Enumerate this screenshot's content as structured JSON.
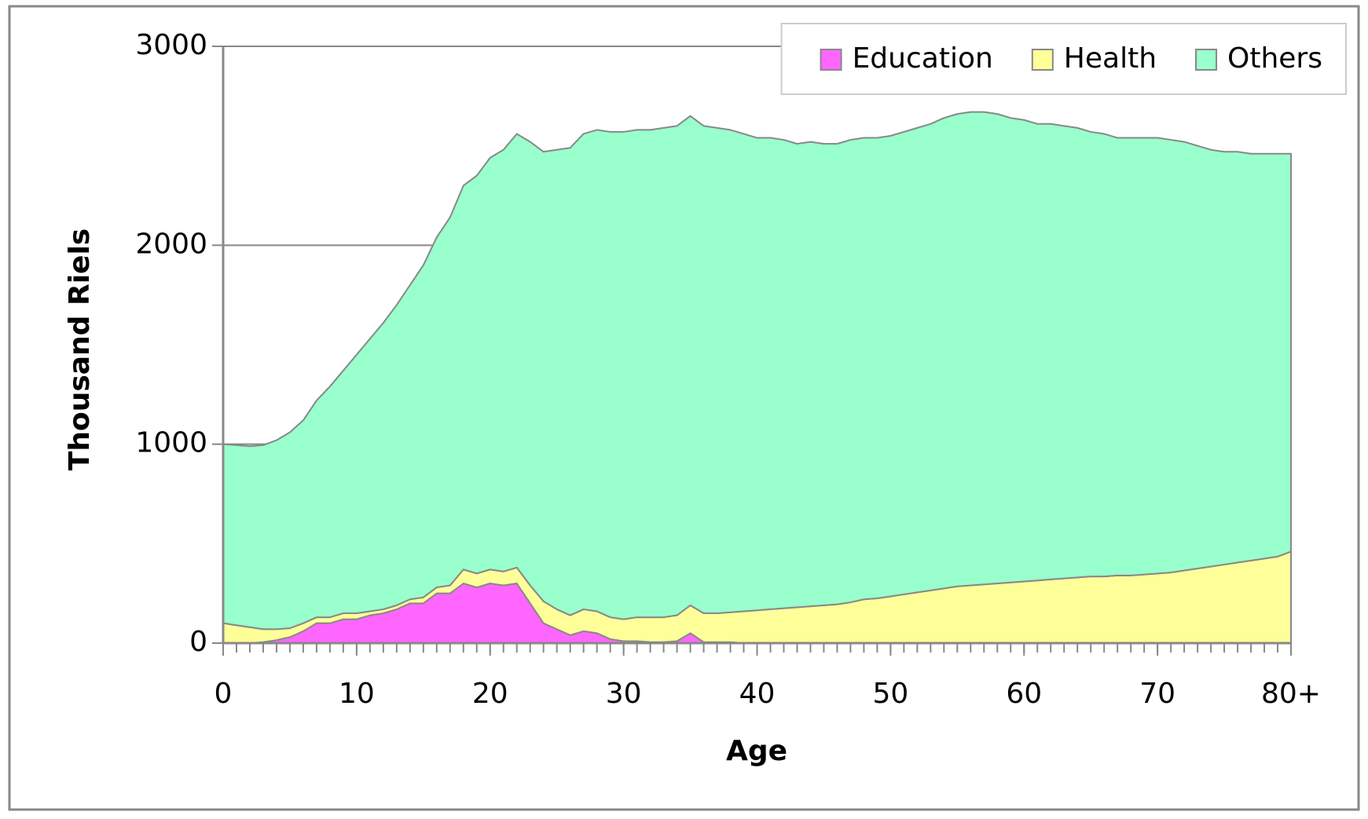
{
  "chart_data": {
    "type": "stacked-area",
    "x_label": "Age",
    "y_label": "Thousand Riels",
    "x": [
      0,
      1,
      2,
      3,
      4,
      5,
      6,
      7,
      8,
      9,
      10,
      11,
      12,
      13,
      14,
      15,
      16,
      17,
      18,
      19,
      20,
      21,
      22,
      23,
      24,
      25,
      26,
      27,
      28,
      29,
      30,
      31,
      32,
      33,
      34,
      35,
      36,
      37,
      38,
      39,
      40,
      41,
      42,
      43,
      44,
      45,
      46,
      47,
      48,
      49,
      50,
      51,
      52,
      53,
      54,
      55,
      56,
      57,
      58,
      59,
      60,
      61,
      62,
      63,
      64,
      65,
      66,
      67,
      68,
      69,
      70,
      71,
      72,
      73,
      74,
      75,
      76,
      77,
      78,
      79,
      80
    ],
    "xlim": [
      0,
      80
    ],
    "xticks": [
      0,
      10,
      20,
      30,
      40,
      50,
      60,
      70,
      {
        "value": 80,
        "label": "80+"
      }
    ],
    "ylim": [
      0,
      3000
    ],
    "yticks": [
      0,
      1000,
      2000,
      3000
    ],
    "grid": true,
    "legend": "top-right",
    "series": [
      {
        "name": "Education",
        "color": "#ff66ff",
        "values": [
          0,
          0,
          0,
          5,
          15,
          30,
          60,
          100,
          100,
          120,
          120,
          140,
          150,
          170,
          200,
          200,
          250,
          250,
          300,
          280,
          300,
          290,
          300,
          200,
          100,
          70,
          40,
          60,
          50,
          20,
          10,
          10,
          5,
          5,
          10,
          50,
          5,
          5,
          5,
          0,
          0,
          0,
          0,
          0,
          0,
          0,
          0,
          0,
          0,
          0,
          0,
          0,
          0,
          0,
          0,
          0,
          0,
          0,
          0,
          0,
          0,
          0,
          0,
          0,
          0,
          0,
          0,
          0,
          0,
          0,
          0,
          0,
          0,
          0,
          0,
          0,
          0,
          0,
          0,
          0,
          0
        ]
      },
      {
        "name": "Health",
        "color": "#ffff99",
        "values": [
          100,
          90,
          80,
          65,
          55,
          45,
          40,
          30,
          30,
          30,
          30,
          20,
          20,
          20,
          20,
          30,
          30,
          40,
          70,
          70,
          70,
          70,
          80,
          90,
          110,
          100,
          100,
          110,
          110,
          110,
          110,
          120,
          125,
          125,
          130,
          140,
          145,
          145,
          150,
          160,
          165,
          170,
          175,
          180,
          185,
          190,
          195,
          205,
          220,
          225,
          235,
          245,
          255,
          265,
          275,
          285,
          290,
          295,
          300,
          305,
          310,
          315,
          320,
          325,
          330,
          335,
          335,
          340,
          340,
          345,
          350,
          355,
          365,
          375,
          385,
          395,
          405,
          415,
          425,
          435,
          460
        ]
      },
      {
        "name": "Others",
        "color": "#99ffcc",
        "values": [
          900,
          905,
          910,
          925,
          950,
          985,
          1020,
          1090,
          1160,
          1220,
          1300,
          1370,
          1440,
          1510,
          1580,
          1670,
          1760,
          1850,
          1930,
          2000,
          2070,
          2120,
          2180,
          2230,
          2260,
          2310,
          2350,
          2390,
          2420,
          2440,
          2450,
          2450,
          2450,
          2460,
          2460,
          2460,
          2450,
          2440,
          2425,
          2400,
          2375,
          2370,
          2355,
          2330,
          2335,
          2320,
          2315,
          2325,
          2320,
          2315,
          2315,
          2325,
          2335,
          2345,
          2365,
          2375,
          2380,
          2375,
          2360,
          2335,
          2320,
          2295,
          2290,
          2275,
          2260,
          2235,
          2225,
          2200,
          2200,
          2195,
          2190,
          2175,
          2155,
          2125,
          2095,
          2075,
          2065,
          2045,
          2035,
          2025,
          2000
        ]
      }
    ]
  }
}
